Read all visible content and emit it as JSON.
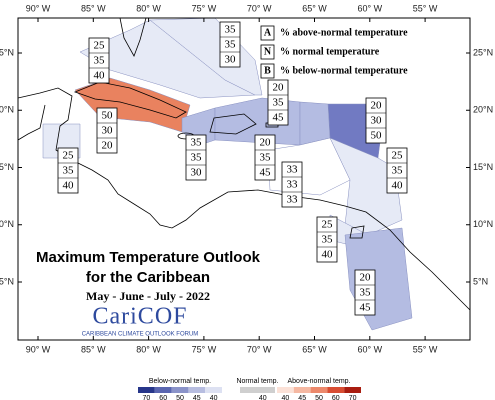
{
  "map": {
    "lon_ticks": [
      {
        "value": -90,
        "label": "90° W"
      },
      {
        "value": -85,
        "label": "85° W"
      },
      {
        "value": -80,
        "label": "80° W"
      },
      {
        "value": -75,
        "label": "75° W"
      },
      {
        "value": -70,
        "label": "70° W"
      },
      {
        "value": -65,
        "label": "65° W"
      },
      {
        "value": -60,
        "label": "60° W"
      },
      {
        "value": -55,
        "label": "55° W"
      }
    ],
    "lat_ticks": [
      {
        "value": 25,
        "label": "25°N"
      },
      {
        "value": 20,
        "label": "20°N"
      },
      {
        "value": 15,
        "label": "15°N"
      },
      {
        "value": 10,
        "label": "10°N"
      },
      {
        "value": 5,
        "label": "5°N"
      }
    ],
    "regions": [
      {
        "color": "#e6eaf6",
        "A": 25,
        "N": 35,
        "B": 40
      },
      {
        "color": "#e6eaf6",
        "A": 35,
        "N": 35,
        "B": 30
      },
      {
        "color": "#e9825f",
        "A": 50,
        "N": 30,
        "B": 20
      },
      {
        "color": "#b4bce2",
        "A": 35,
        "N": 35,
        "B": 30
      },
      {
        "color": "#b4bce2",
        "A": 20,
        "N": 35,
        "B": 45
      },
      {
        "color": "#717ac2",
        "A": 20,
        "N": 30,
        "B": 50
      },
      {
        "color": "#e6eaf6",
        "A": 25,
        "N": 35,
        "B": 40
      },
      {
        "color": "#b4bce2",
        "A": 20,
        "N": 35,
        "B": 45
      },
      {
        "color": "#ffffff",
        "A": 33,
        "N": 33,
        "B": 33
      },
      {
        "color": "#e6eaf6",
        "A": 25,
        "N": 35,
        "B": 40
      },
      {
        "color": "#e6eaf6",
        "A": 25,
        "N": 35,
        "B": 40
      },
      {
        "color": "#b4bce2",
        "A": 20,
        "N": 35,
        "B": 45
      }
    ]
  },
  "key": [
    {
      "letter": "A",
      "text": "% above-normal temperature"
    },
    {
      "letter": "N",
      "text": "% normal temperature"
    },
    {
      "letter": "B",
      "text": "% below-normal temperature"
    }
  ],
  "title": {
    "line1": "Maximum Temperature Outlook",
    "line2": "for the Caribbean",
    "period": "May - June - July - 2022",
    "logo": "CariCOF",
    "logo_sub": "CARIBBEAN CLIMATE OUTLOOK FORUM"
  },
  "colorbar": {
    "below": {
      "label": "Below-normal temp.",
      "ticks": [
        70,
        60,
        50,
        45,
        40
      ],
      "colors": [
        "#27368a",
        "#5a66b0",
        "#8a93c9",
        "#b7bde0",
        "#dde1f2"
      ]
    },
    "normal": {
      "label": "Normal temp.",
      "ticks": [
        40
      ],
      "colors": [
        "#cfcfcf"
      ]
    },
    "above": {
      "label": "Above-normal temp.",
      "ticks": [
        40,
        45,
        50,
        60,
        70
      ],
      "colors": [
        "#fbe1d7",
        "#f5b8a2",
        "#ec896c",
        "#d84d33",
        "#a91d10"
      ]
    }
  }
}
